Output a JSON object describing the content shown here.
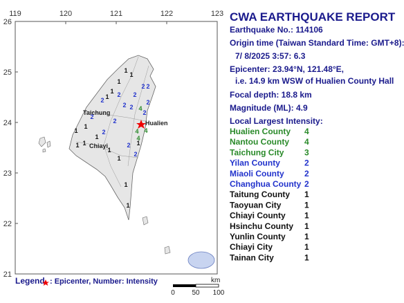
{
  "map": {
    "lon_ticks": [
      119,
      120,
      121,
      122,
      123
    ],
    "lat_ticks": [
      26,
      25,
      24,
      23,
      22,
      21
    ],
    "places": [
      "Taichung",
      "Hualien",
      "Chiayi"
    ],
    "stations": [
      1,
      1,
      2,
      2,
      1,
      1,
      1,
      2,
      2,
      2,
      2,
      2,
      4,
      2,
      2,
      4,
      4,
      2,
      2,
      1,
      1,
      2,
      1,
      1,
      1,
      2,
      1,
      1,
      2,
      1,
      4,
      1,
      1
    ]
  },
  "report": {
    "title": "CWA EARTHQUAKE REPORT",
    "lines": [
      "Earthquake No.: 114106",
      "Origin time (Taiwan Standard Time: GMT+8):",
      "7/ 8/2025  3:57: 6.3",
      "Epicenter: 23.94°N, 121.48°E,",
      "i.e. 14.9 km WSW of Hualien County Hall",
      "Focal depth: 18.8 km",
      "Magnitude (ML): 4.9",
      "Local Largest Intensity:"
    ],
    "intensities": [
      {
        "area": "Hualien County",
        "intensity": 4
      },
      {
        "area": "Nantou County",
        "intensity": 4
      },
      {
        "area": "Taichung City",
        "intensity": 3
      },
      {
        "area": "Yilan County",
        "intensity": 2
      },
      {
        "area": "Miaoli County",
        "intensity": 2
      },
      {
        "area": "Changhua County",
        "intensity": 2
      },
      {
        "area": "Taitung County",
        "intensity": 1
      },
      {
        "area": "Taoyuan City",
        "intensity": 1
      },
      {
        "area": "Chiayi County",
        "intensity": 1
      },
      {
        "area": "Hsinchu County",
        "intensity": 1
      },
      {
        "area": "Yunlin County",
        "intensity": 1
      },
      {
        "area": "Chiayi City",
        "intensity": 1
      },
      {
        "area": "Tainan City",
        "intensity": 1
      }
    ]
  },
  "legend": {
    "title": "Legend",
    "text": ": Epicenter, Number: Intensity"
  },
  "scale": {
    "unit": "km",
    "ticks": [
      0,
      50,
      100
    ]
  }
}
